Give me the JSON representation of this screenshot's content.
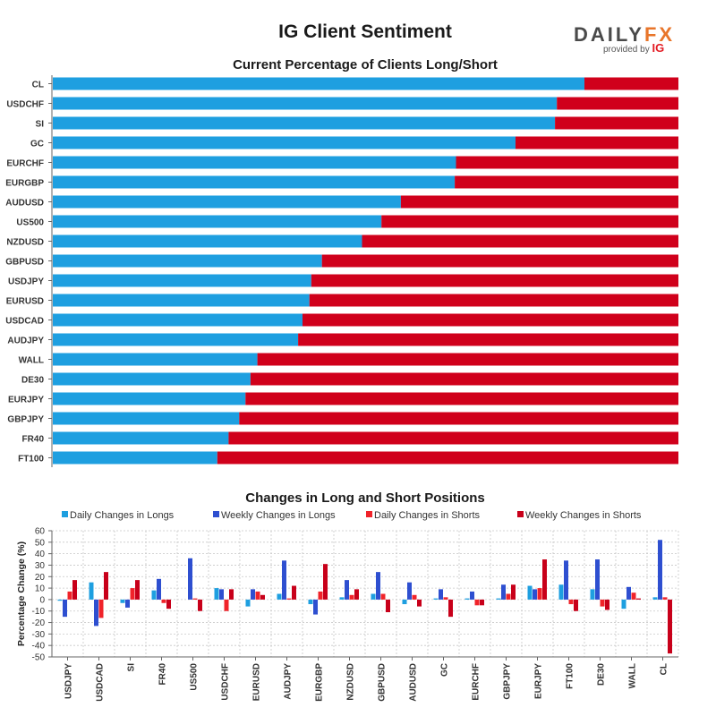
{
  "title": "IG Client Sentiment",
  "logo": {
    "word_a": "DAILY",
    "word_b": "FX",
    "provided_by": "provided by",
    "ig": "IG"
  },
  "colors": {
    "long": "#1e9fe0",
    "short": "#d0001b",
    "daily_long": "#1e9fe0",
    "weekly_long": "#2e4fd0",
    "daily_short": "#f0232a",
    "weekly_short": "#c8001a"
  },
  "chart_data": [
    {
      "type": "bar",
      "orientation": "horizontal",
      "stacked": true,
      "title": "Current Percentage of Clients Long/Short",
      "categories": [
        "CL",
        "USDCHF",
        "SI",
        "GC",
        "EURCHF",
        "EURGBP",
        "AUDUSD",
        "US500",
        "NZDUSD",
        "GBPUSD",
        "USDJPY",
        "EURUSD",
        "USDCAD",
        "AUDJPY",
        "WALL",
        "DE30",
        "EURJPY",
        "GBPJPY",
        "FR40",
        "FT100"
      ],
      "series": [
        {
          "name": "Long",
          "values": [
            85.0,
            80.6,
            80.3,
            74.0,
            64.5,
            64.3,
            55.7,
            52.6,
            49.5,
            43.1,
            41.4,
            41.1,
            40.0,
            39.3,
            32.8,
            31.7,
            30.9,
            29.9,
            28.2,
            26.4
          ]
        },
        {
          "name": "Short",
          "values": [
            15.0,
            19.4,
            19.7,
            26.0,
            35.5,
            35.7,
            44.3,
            47.4,
            50.5,
            56.9,
            58.6,
            58.9,
            60.0,
            60.7,
            67.2,
            68.3,
            69.1,
            70.1,
            71.8,
            73.6
          ]
        }
      ],
      "xlim": [
        0,
        100
      ]
    },
    {
      "type": "bar",
      "title": "Changes in Long and Short Positions",
      "ylabel": "Percentage Change (%)",
      "ylim": [
        -50,
        60
      ],
      "yticks": [
        60,
        50,
        40,
        30,
        20,
        10,
        0,
        -10,
        -20,
        -30,
        -40,
        -50
      ],
      "grid": true,
      "legend": "top",
      "categories": [
        "USDJPY",
        "USDCAD",
        "SI",
        "FR40",
        "US500",
        "USDCHF",
        "EURUSD",
        "AUDJPY",
        "EURGBP",
        "NZDUSD",
        "GBPUSD",
        "AUDUSD",
        "GC",
        "EURCHF",
        "GBPJPY",
        "EURJPY",
        "FT100",
        "DE30",
        "WALL",
        "CL"
      ],
      "series": [
        {
          "name": "Daily Changes in Longs",
          "values": [
            -1,
            15,
            -3,
            8,
            0,
            10,
            -6,
            5,
            -4,
            2,
            5,
            -4,
            1,
            1,
            1,
            12,
            13,
            9,
            -8,
            2
          ]
        },
        {
          "name": "Weekly Changes in Longs",
          "values": [
            -15,
            -23,
            -7,
            18,
            36,
            9,
            9,
            34,
            -13,
            17,
            24,
            15,
            9,
            7,
            13,
            9,
            34,
            35,
            11,
            52
          ]
        },
        {
          "name": "Daily Changes in Shorts",
          "values": [
            7,
            -16,
            10,
            -3,
            1,
            -10,
            7,
            1,
            7,
            4,
            5,
            4,
            2,
            -5,
            5,
            10,
            -4,
            -6,
            6,
            2
          ]
        },
        {
          "name": "Weekly Changes in Shorts",
          "values": [
            17,
            24,
            17,
            -8,
            -10,
            9,
            4,
            12,
            31,
            9,
            -11,
            -6,
            -15,
            -5,
            13,
            35,
            -10,
            -9,
            1,
            -47
          ]
        }
      ]
    }
  ]
}
